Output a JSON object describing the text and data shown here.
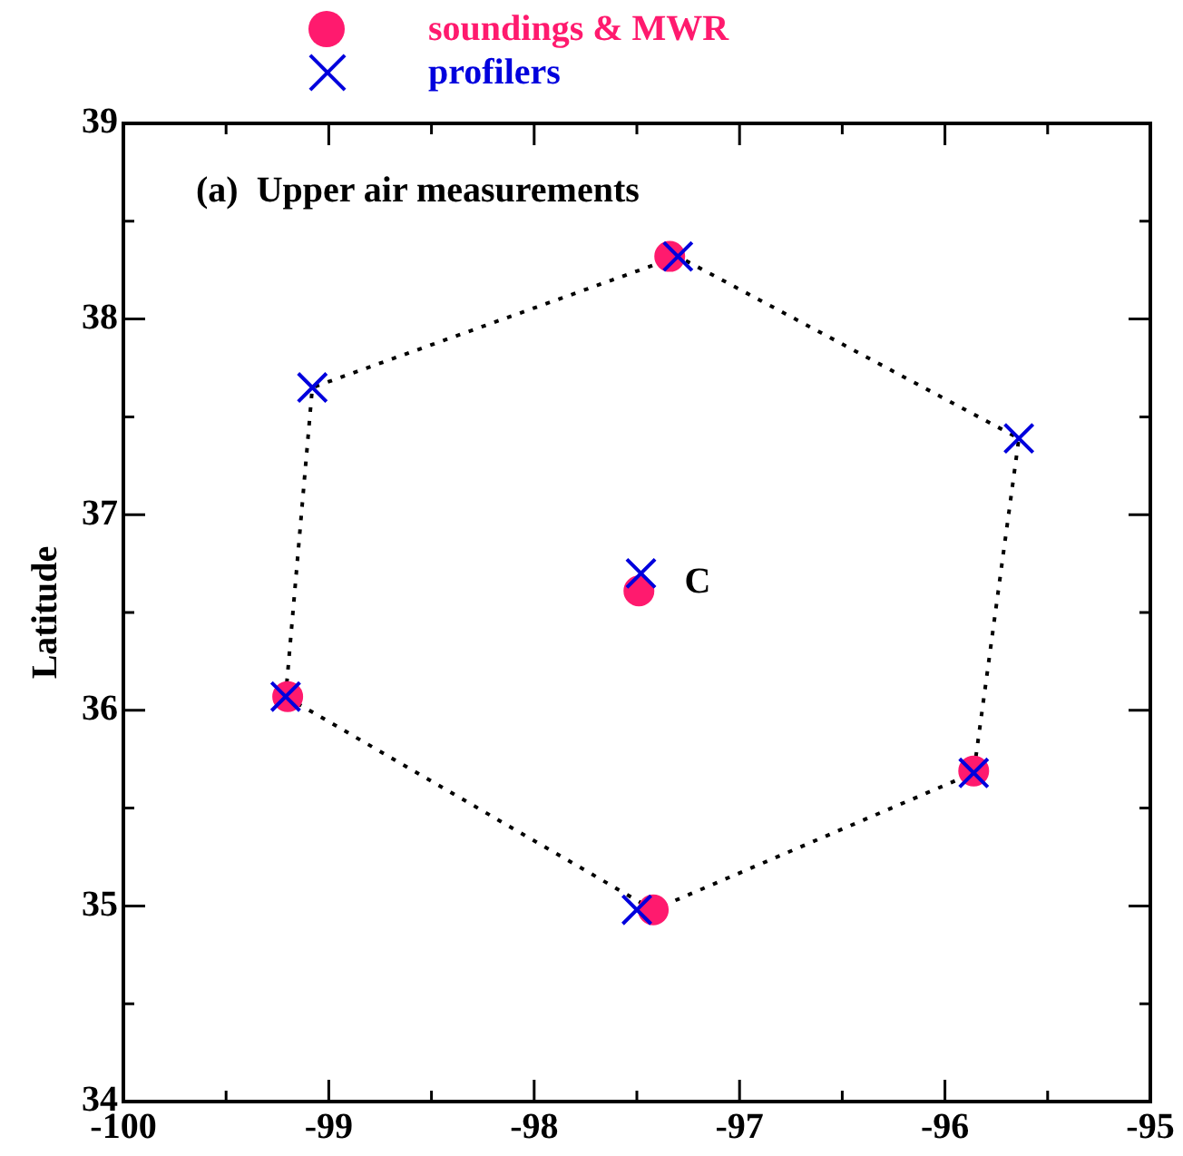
{
  "chart_data": {
    "type": "scatter",
    "title": "(a)  Upper air measurements",
    "ylabel": "Latitude",
    "xlim": [
      -100,
      -95
    ],
    "ylim": [
      34,
      39
    ],
    "xticks": [
      -100,
      {
        "value": -99.5,
        "label": null
      },
      -99,
      {
        "value": -98.5,
        "label": null
      },
      -98,
      {
        "value": -97.5,
        "label": null
      },
      -97,
      {
        "value": -96.5,
        "label": null
      },
      -96,
      {
        "value": -95.5,
        "label": null
      },
      -95
    ],
    "yticks": [
      34,
      {
        "value": 34.5,
        "label": null
      },
      35,
      {
        "value": 35.5,
        "label": null
      },
      36,
      {
        "value": 36.5,
        "label": null
      },
      37,
      {
        "value": 37.5,
        "label": null
      },
      38,
      {
        "value": 38.5,
        "label": null
      },
      39
    ],
    "grid": false,
    "legend": "top",
    "series": [
      {
        "type": "line",
        "color": "#000000",
        "line_style": "dotted",
        "marker": "none",
        "x": [
          -99.21,
          -99.08,
          -97.3,
          -95.64,
          -95.86
        ],
        "values": [
          36.07,
          37.65,
          38.32,
          37.39,
          35.68
        ]
      },
      {
        "type": "line",
        "color": "#000000",
        "line_style": "dotted",
        "marker": "none",
        "x": [
          -99.21,
          -97.42,
          -95.86
        ],
        "values": [
          36.07,
          34.98,
          35.68
        ]
      },
      {
        "name": "soundings & MWR",
        "color": "#ff1a6e",
        "marker": "circle",
        "x": [
          -97.34,
          -97.49,
          -99.2,
          -95.86,
          -97.42
        ],
        "values": [
          38.32,
          36.61,
          36.07,
          35.69,
          34.98
        ]
      },
      {
        "name": "profilers",
        "color": "#0000dd",
        "marker": "cross",
        "x": [
          -97.3,
          -99.08,
          -95.64,
          -97.48,
          -99.21,
          -95.86,
          -97.5
        ],
        "values": [
          38.32,
          37.65,
          37.39,
          36.7,
          36.07,
          35.68,
          34.98
        ]
      }
    ],
    "annotations": [
      {
        "text": "C",
        "x": -97.48,
        "y": 36.65
      }
    ]
  }
}
